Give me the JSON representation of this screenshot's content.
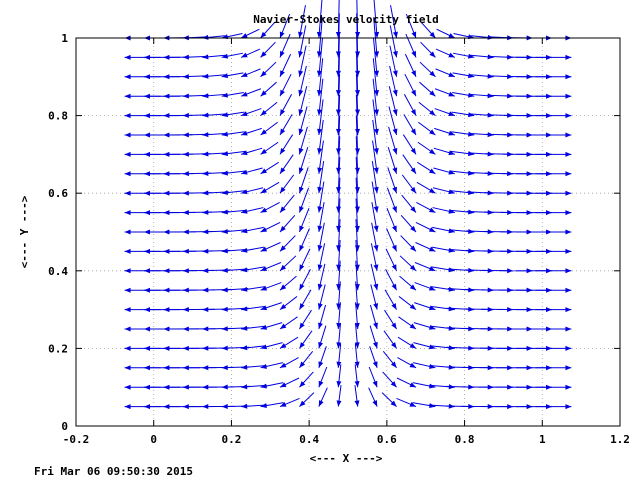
{
  "chart_data": {
    "type": "vector_field",
    "title": "Navier-Stokes velocity field",
    "xlabel": "<--- X --->",
    "ylabel": "<--- Y --->",
    "xlim": [
      -0.2,
      1.2
    ],
    "ylim": [
      0,
      1
    ],
    "xticks": [
      "-0.2",
      "0",
      "0.2",
      "0.4",
      "0.6",
      "0.8",
      "1",
      "1.2"
    ],
    "yticks": [
      "0",
      "0.2",
      "0.4",
      "0.6",
      "0.8",
      "1"
    ],
    "grid": true,
    "arrow_color": "#0000e0",
    "field": {
      "x_range": [
        -0.075,
        1.075
      ],
      "y_range": [
        0.05,
        1.0
      ],
      "nx": 24,
      "ny": 20,
      "description_of_flow": "downward jet centered at x=0.5, spreading outward toward sides"
    }
  },
  "footer": {
    "timestamp": "Fri Mar 06 09:50:30 2015"
  }
}
